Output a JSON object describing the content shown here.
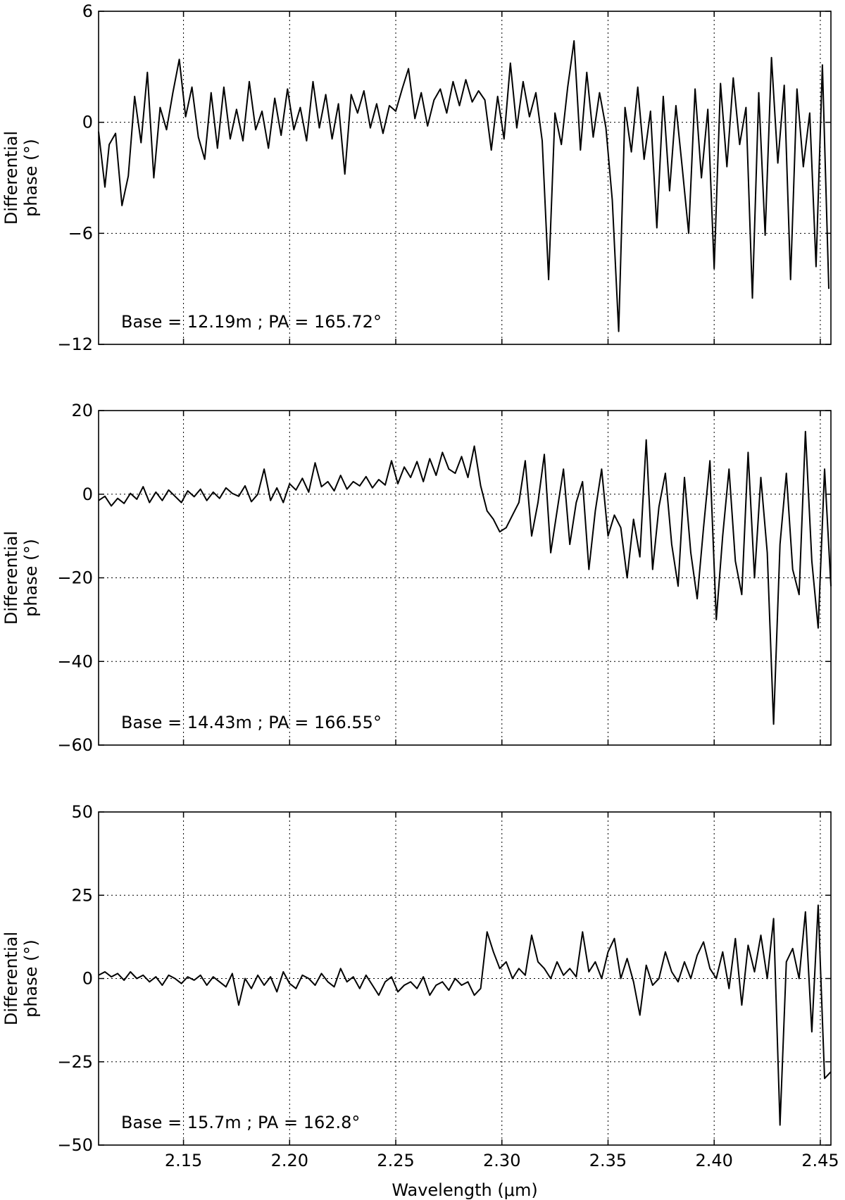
{
  "figure": {
    "xlabel": "Wavelength (μm)"
  },
  "chart_data": [
    {
      "type": "line",
      "ylabel_line1": "Differential",
      "ylabel_line2": "phase (°)",
      "annotation": "Base = 12.19m ; PA = 165.72°",
      "xlim": [
        2.11,
        2.455
      ],
      "ylim": [
        -12,
        6
      ],
      "xticks": [
        2.15,
        2.2,
        2.25,
        2.3,
        2.35,
        2.4,
        2.45
      ],
      "xtick_labels": [
        "2.15",
        "2.20",
        "2.25",
        "2.30",
        "2.35",
        "2.40",
        "2.45"
      ],
      "yticks": [
        -12,
        -6,
        0,
        6
      ],
      "ytick_labels": [
        "−12",
        "−6",
        "0",
        "6"
      ],
      "grid": true,
      "series": [
        {
          "x": [
            2.11,
            2.113,
            2.115,
            2.118,
            2.121,
            2.124,
            2.127,
            2.13,
            2.133,
            2.136,
            2.139,
            2.142,
            2.145,
            2.148,
            2.151,
            2.154,
            2.157,
            2.16,
            2.163,
            2.166,
            2.169,
            2.172,
            2.175,
            2.178,
            2.181,
            2.184,
            2.187,
            2.19,
            2.193,
            2.196,
            2.199,
            2.202,
            2.205,
            2.208,
            2.211,
            2.214,
            2.217,
            2.22,
            2.223,
            2.226,
            2.229,
            2.232,
            2.235,
            2.238,
            2.241,
            2.244,
            2.247,
            2.25,
            2.253,
            2.256,
            2.259,
            2.262,
            2.265,
            2.268,
            2.271,
            2.274,
            2.277,
            2.28,
            2.283,
            2.286,
            2.289,
            2.292,
            2.295,
            2.298,
            2.301,
            2.304,
            2.307,
            2.31,
            2.313,
            2.316,
            2.319,
            2.322,
            2.325,
            2.328,
            2.331,
            2.334,
            2.337,
            2.34,
            2.343,
            2.346,
            2.349,
            2.352,
            2.355,
            2.358,
            2.361,
            2.364,
            2.367,
            2.37,
            2.373,
            2.376,
            2.379,
            2.382,
            2.385,
            2.388,
            2.391,
            2.394,
            2.397,
            2.4,
            2.403,
            2.406,
            2.409,
            2.412,
            2.415,
            2.418,
            2.421,
            2.424,
            2.427,
            2.43,
            2.433,
            2.436,
            2.439,
            2.442,
            2.445,
            2.448,
            2.451,
            2.454
          ],
          "values": [
            -0.5,
            -3.5,
            -1.2,
            -0.6,
            -4.5,
            -2.9,
            1.4,
            -1.1,
            2.7,
            -3.0,
            0.8,
            -0.4,
            1.6,
            3.4,
            0.3,
            1.9,
            -0.8,
            -2.0,
            1.6,
            -1.4,
            1.9,
            -0.9,
            0.7,
            -1.0,
            2.2,
            -0.4,
            0.6,
            -1.4,
            1.3,
            -0.7,
            1.8,
            -0.4,
            0.8,
            -1.0,
            2.2,
            -0.3,
            1.5,
            -0.9,
            1.0,
            -2.8,
            1.5,
            0.5,
            1.7,
            -0.3,
            1.0,
            -0.6,
            0.9,
            0.6,
            1.8,
            2.9,
            0.2,
            1.6,
            -0.2,
            1.2,
            1.8,
            0.5,
            2.2,
            0.9,
            2.3,
            1.1,
            1.7,
            1.2,
            -1.5,
            1.4,
            -0.9,
            3.2,
            -0.3,
            2.2,
            0.3,
            1.6,
            -1.0,
            -8.5,
            0.5,
            -1.2,
            1.9,
            4.4,
            -1.5,
            2.7,
            -0.8,
            1.6,
            -0.3,
            -4.2,
            -11.3,
            0.8,
            -1.6,
            1.9,
            -2.0,
            0.6,
            -5.7,
            1.4,
            -3.7,
            0.9,
            -2.5,
            -6.0,
            1.8,
            -3.0,
            0.7,
            -7.9,
            2.1,
            -2.4,
            2.4,
            -1.2,
            0.8,
            -9.5,
            1.6,
            -6.1,
            3.5,
            -2.2,
            2.0,
            -8.5,
            1.8,
            -2.4,
            0.5,
            -7.8,
            3.1,
            -9.0
          ]
        }
      ]
    },
    {
      "type": "line",
      "ylabel_line1": "Differential",
      "ylabel_line2": "phase (°)",
      "annotation": "Base = 14.43m ; PA = 166.55°",
      "xlim": [
        2.11,
        2.455
      ],
      "ylim": [
        -60,
        20
      ],
      "xticks": [
        2.15,
        2.2,
        2.25,
        2.3,
        2.35,
        2.4,
        2.45
      ],
      "xtick_labels": [
        "2.15",
        "2.20",
        "2.25",
        "2.30",
        "2.35",
        "2.40",
        "2.45"
      ],
      "yticks": [
        -60,
        -40,
        -20,
        0,
        20
      ],
      "ytick_labels": [
        "−60",
        "−40",
        "−20",
        "0",
        "20"
      ],
      "grid": true,
      "series": [
        {
          "x": [
            2.11,
            2.113,
            2.116,
            2.119,
            2.122,
            2.125,
            2.128,
            2.131,
            2.134,
            2.137,
            2.14,
            2.143,
            2.146,
            2.149,
            2.152,
            2.155,
            2.158,
            2.161,
            2.164,
            2.167,
            2.17,
            2.173,
            2.176,
            2.179,
            2.182,
            2.185,
            2.188,
            2.191,
            2.194,
            2.197,
            2.2,
            2.203,
            2.206,
            2.209,
            2.212,
            2.215,
            2.218,
            2.221,
            2.224,
            2.227,
            2.23,
            2.233,
            2.236,
            2.239,
            2.242,
            2.245,
            2.248,
            2.251,
            2.254,
            2.257,
            2.26,
            2.263,
            2.266,
            2.269,
            2.272,
            2.275,
            2.278,
            2.281,
            2.284,
            2.287,
            2.29,
            2.293,
            2.296,
            2.299,
            2.302,
            2.305,
            2.308,
            2.311,
            2.314,
            2.317,
            2.32,
            2.323,
            2.326,
            2.329,
            2.332,
            2.335,
            2.338,
            2.341,
            2.344,
            2.347,
            2.35,
            2.353,
            2.356,
            2.359,
            2.362,
            2.365,
            2.368,
            2.371,
            2.374,
            2.377,
            2.38,
            2.383,
            2.386,
            2.389,
            2.392,
            2.395,
            2.398,
            2.401,
            2.404,
            2.407,
            2.41,
            2.413,
            2.416,
            2.419,
            2.422,
            2.425,
            2.428,
            2.431,
            2.434,
            2.437,
            2.44,
            2.443,
            2.446,
            2.449,
            2.452,
            2.455
          ],
          "values": [
            -1.5,
            -0.5,
            -2.8,
            -1.0,
            -2.2,
            0.2,
            -1.2,
            1.8,
            -2.0,
            0.5,
            -1.5,
            1.0,
            -0.5,
            -2.0,
            0.8,
            -0.6,
            1.2,
            -1.5,
            0.5,
            -1.0,
            1.5,
            0.2,
            -0.5,
            2.0,
            -1.8,
            0.0,
            6.0,
            -1.5,
            1.5,
            -2.0,
            2.5,
            1.0,
            3.8,
            0.5,
            7.5,
            1.8,
            3.0,
            0.8,
            4.5,
            1.2,
            3.0,
            2.0,
            4.2,
            1.5,
            3.5,
            2.2,
            8.0,
            2.5,
            6.5,
            4.0,
            7.8,
            3.0,
            8.5,
            4.5,
            10.0,
            6.0,
            5.0,
            9.0,
            4.0,
            11.5,
            2.0,
            -4.0,
            -6.0,
            -9.0,
            -8.0,
            -5.0,
            -2.0,
            8.0,
            -10.0,
            -2.0,
            9.5,
            -14.0,
            -4.0,
            6.0,
            -12.0,
            -2.0,
            3.0,
            -18.0,
            -4.0,
            6.0,
            -10.0,
            -5.0,
            -8.0,
            -20.0,
            -6.0,
            -15.0,
            13.0,
            -18.0,
            -3.0,
            5.0,
            -12.0,
            -22.0,
            4.0,
            -14.0,
            -25.0,
            -8.0,
            8.0,
            -30.0,
            -10.0,
            6.0,
            -16.0,
            -24.0,
            10.0,
            -20.0,
            4.0,
            -14.0,
            -55.0,
            -12.0,
            5.0,
            -18.0,
            -24.0,
            15.0,
            -16.0,
            -32.0,
            6.0,
            -22.0
          ]
        }
      ]
    },
    {
      "type": "line",
      "ylabel_line1": "Differential",
      "ylabel_line2": "phase (°)",
      "annotation": "Base = 15.7m ; PA = 162.8°",
      "xlim": [
        2.11,
        2.455
      ],
      "ylim": [
        -50,
        50
      ],
      "xticks": [
        2.15,
        2.2,
        2.25,
        2.3,
        2.35,
        2.4,
        2.45
      ],
      "xtick_labels": [
        "2.15",
        "2.20",
        "2.25",
        "2.30",
        "2.35",
        "2.40",
        "2.45"
      ],
      "yticks": [
        -50,
        -25,
        0,
        25,
        50
      ],
      "ytick_labels": [
        "−50",
        "−25",
        "0",
        "25",
        "50"
      ],
      "grid": true,
      "series": [
        {
          "x": [
            2.11,
            2.113,
            2.116,
            2.119,
            2.122,
            2.125,
            2.128,
            2.131,
            2.134,
            2.137,
            2.14,
            2.143,
            2.146,
            2.149,
            2.152,
            2.155,
            2.158,
            2.161,
            2.164,
            2.167,
            2.17,
            2.173,
            2.176,
            2.179,
            2.182,
            2.185,
            2.188,
            2.191,
            2.194,
            2.197,
            2.2,
            2.203,
            2.206,
            2.209,
            2.212,
            2.215,
            2.218,
            2.221,
            2.224,
            2.227,
            2.23,
            2.233,
            2.236,
            2.239,
            2.242,
            2.245,
            2.248,
            2.251,
            2.254,
            2.257,
            2.26,
            2.263,
            2.266,
            2.269,
            2.272,
            2.275,
            2.278,
            2.281,
            2.284,
            2.287,
            2.29,
            2.293,
            2.296,
            2.299,
            2.302,
            2.305,
            2.308,
            2.311,
            2.314,
            2.317,
            2.32,
            2.323,
            2.326,
            2.329,
            2.332,
            2.335,
            2.338,
            2.341,
            2.344,
            2.347,
            2.35,
            2.353,
            2.356,
            2.359,
            2.362,
            2.365,
            2.368,
            2.371,
            2.374,
            2.377,
            2.38,
            2.383,
            2.386,
            2.389,
            2.392,
            2.395,
            2.398,
            2.401,
            2.404,
            2.407,
            2.41,
            2.413,
            2.416,
            2.419,
            2.422,
            2.425,
            2.428,
            2.431,
            2.434,
            2.437,
            2.44,
            2.443,
            2.446,
            2.449,
            2.452,
            2.455
          ],
          "values": [
            1.0,
            2.0,
            0.5,
            1.5,
            -0.5,
            2.0,
            0.0,
            1.0,
            -1.0,
            0.5,
            -2.0,
            1.0,
            0.0,
            -1.5,
            0.5,
            -0.5,
            1.0,
            -2.0,
            0.5,
            -1.0,
            -2.5,
            1.5,
            -8.0,
            0.0,
            -3.0,
            1.0,
            -2.0,
            0.5,
            -4.0,
            2.0,
            -1.5,
            -3.0,
            1.0,
            0.0,
            -2.0,
            1.5,
            -1.0,
            -2.5,
            3.0,
            -1.0,
            0.5,
            -3.0,
            1.0,
            -2.0,
            -5.0,
            -1.0,
            0.5,
            -4.0,
            -2.0,
            -1.0,
            -3.0,
            0.5,
            -5.0,
            -2.0,
            -1.0,
            -3.5,
            0.0,
            -2.0,
            -1.0,
            -5.0,
            -3.0,
            14.0,
            8.0,
            3.0,
            5.0,
            0.0,
            3.0,
            1.0,
            13.0,
            5.0,
            3.0,
            0.0,
            5.0,
            1.0,
            3.0,
            0.5,
            14.0,
            2.0,
            5.0,
            0.0,
            8.0,
            12.0,
            0.0,
            6.0,
            -1.0,
            -11.0,
            4.0,
            -2.0,
            0.0,
            8.0,
            2.0,
            -1.0,
            5.0,
            0.0,
            7.0,
            11.0,
            3.0,
            0.0,
            8.0,
            -3.0,
            12.0,
            -8.0,
            10.0,
            2.0,
            13.0,
            0.0,
            18.0,
            -44.0,
            5.0,
            9.0,
            0.0,
            20.0,
            -16.0,
            22.0,
            -30.0,
            -28.0
          ]
        }
      ]
    }
  ]
}
